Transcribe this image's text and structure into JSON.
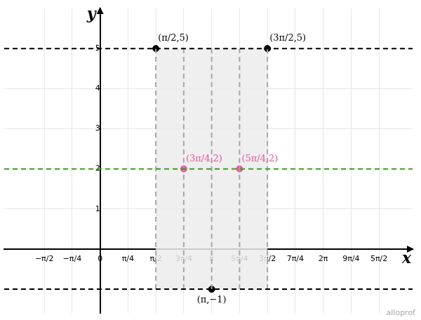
{
  "chart_data": {
    "type": "scatter",
    "x_label": "x",
    "y_label": "y",
    "xlim": [
      -2.7,
      8.8
    ],
    "ylim": [
      -1.6,
      6
    ],
    "xticks": [
      {
        "value": -1.5708,
        "label": "−π/2"
      },
      {
        "value": -0.7854,
        "label": "−π/4"
      },
      0,
      {
        "value": 0.7854,
        "label": "π/4"
      },
      {
        "value": 1.5708,
        "label": "π/2"
      },
      {
        "value": 2.3562,
        "label": "3π/4"
      },
      {
        "value": 3.1416,
        "label": "π"
      },
      {
        "value": 3.927,
        "label": "5π/4"
      },
      {
        "value": 4.7124,
        "label": "3π/2"
      },
      {
        "value": 5.4978,
        "label": "7π/4"
      },
      {
        "value": 6.2832,
        "label": "2π"
      },
      {
        "value": 7.0686,
        "label": "9π/4"
      },
      {
        "value": 7.854,
        "label": "5π/2"
      }
    ],
    "yticks": [
      1,
      2,
      3,
      4,
      5
    ],
    "grid": true,
    "hlines": [
      {
        "y": 5,
        "color": "#000000",
        "line_style": "dashed"
      },
      {
        "y": 2,
        "color": "#3a9d23",
        "line_style": "dashed"
      },
      {
        "y": -1,
        "color": "#000000",
        "line_style": "dashed"
      }
    ],
    "vlines": [
      {
        "x": 1.5708,
        "y_range": [
          -1,
          5
        ],
        "color": "#a6a6a6",
        "line_style": "dashed"
      },
      {
        "x": 2.3562,
        "y_range": [
          -1,
          5
        ],
        "color": "#a6a6a6",
        "line_style": "dashed"
      },
      {
        "x": 3.1416,
        "y_range": [
          -1,
          5
        ],
        "color": "#a6a6a6",
        "line_style": "dashed"
      },
      {
        "x": 3.927,
        "y_range": [
          -1,
          5
        ],
        "color": "#a6a6a6",
        "line_style": "dashed"
      },
      {
        "x": 4.7124,
        "y_range": [
          -1,
          5
        ],
        "color": "#a6a6a6",
        "line_style": "dashed"
      }
    ],
    "region": {
      "x_range": [
        1.5708,
        4.7124
      ],
      "y_range": [
        -1,
        5
      ],
      "color": "#ececec"
    },
    "points": [
      {
        "x": 1.5708,
        "y": 5,
        "label": "(π/2,5)",
        "color": "#000000",
        "marker": "circle"
      },
      {
        "x": 4.7124,
        "y": 5,
        "label": "(3π/2,5)",
        "color": "#000000",
        "marker": "circle"
      },
      {
        "x": 2.3562,
        "y": 2,
        "label": "(3π/4,2)",
        "color": "#e8559b",
        "marker": "circle"
      },
      {
        "x": 3.927,
        "y": 2,
        "label": "(5π/4,2)",
        "color": "#e8559b",
        "marker": "circle"
      },
      {
        "x": 3.1416,
        "y": -1,
        "label": "(π,−1)",
        "color": "#000000",
        "marker": "circle"
      }
    ],
    "watermark": "alloprof"
  }
}
